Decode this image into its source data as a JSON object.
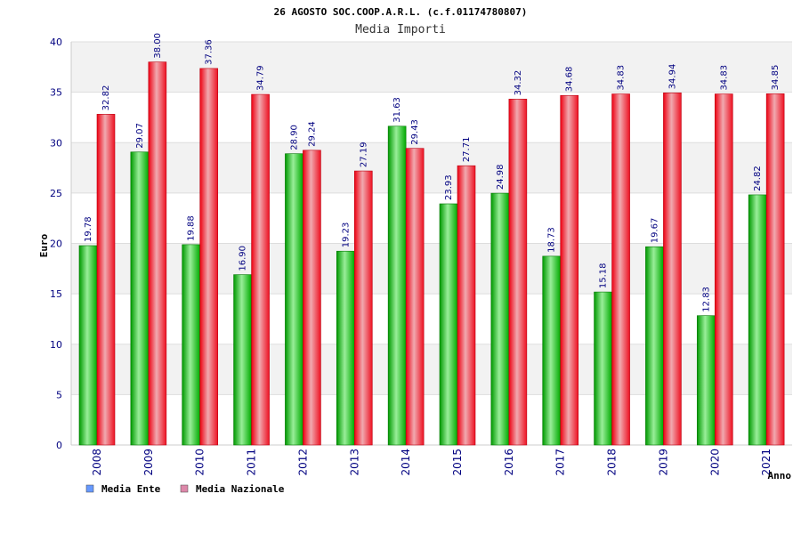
{
  "chart_data": {
    "type": "bar",
    "title": "26 AGOSTO SOC.COOP.A.R.L. (c.f.01174780807)",
    "subtitle": "Media Importi",
    "xlabel": "Anno",
    "ylabel": "Euro",
    "ylim": [
      0,
      40
    ],
    "yticks": [
      0,
      5,
      10,
      15,
      20,
      25,
      30,
      35,
      40
    ],
    "grid": true,
    "legend": "bottom-left",
    "categories": [
      "2008",
      "2009",
      "2010",
      "2011",
      "2012",
      "2013",
      "2014",
      "2015",
      "2016",
      "2017",
      "2018",
      "2019",
      "2020",
      "2021"
    ],
    "series": [
      {
        "name": "Media Ente",
        "color": "#00bb00",
        "legend_color": "#6699ff",
        "values": [
          19.78,
          29.07,
          19.88,
          16.9,
          28.9,
          19.23,
          31.63,
          23.93,
          24.98,
          18.73,
          15.18,
          19.67,
          12.83,
          24.82
        ],
        "labels": [
          "19.78",
          "29.07",
          "19.88",
          "16.90",
          "28.90",
          "19.23",
          "31.63",
          "23.93",
          "24.98",
          "18.73",
          "15.18",
          "19.67",
          "12.83",
          "24.82"
        ]
      },
      {
        "name": "Media Nazionale",
        "color": "#ee1122",
        "legend_color": "#dd88aa",
        "values": [
          32.82,
          38.0,
          37.36,
          34.79,
          29.24,
          27.19,
          29.43,
          27.71,
          34.32,
          34.68,
          34.83,
          34.94,
          34.83,
          34.85
        ],
        "labels": [
          "32.82",
          "38.00",
          "37.36",
          "34.79",
          "29.24",
          "27.19",
          "29.43",
          "27.71",
          "34.32",
          "34.68",
          "34.83",
          "34.94",
          "34.83",
          "34.85"
        ]
      }
    ]
  }
}
